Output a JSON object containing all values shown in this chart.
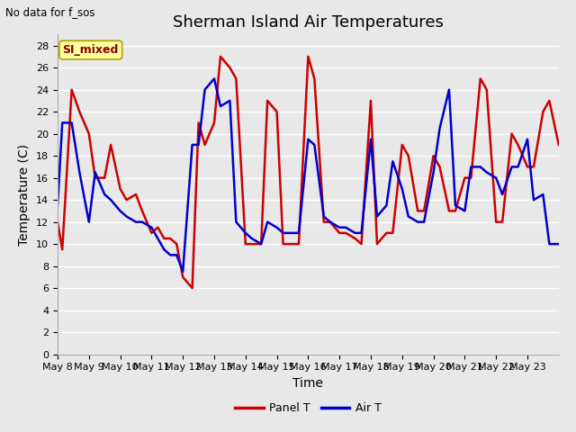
{
  "title": "Sherman Island Air Temperatures",
  "xlabel": "Time",
  "ylabel": "Temperature (C)",
  "annotation_text": "No data for f_sos",
  "legend_box_text": "SI_mixed",
  "legend_entries": [
    "Panel T",
    "Air T"
  ],
  "legend_colors": [
    "#cc0000",
    "#0000cc"
  ],
  "ylim": [
    0,
    29
  ],
  "yticks": [
    0,
    2,
    4,
    6,
    8,
    10,
    12,
    14,
    16,
    18,
    20,
    22,
    24,
    26,
    28
  ],
  "x_labels": [
    "May 8",
    "May 9",
    "May 10",
    "May 11",
    "May 12",
    "May 13",
    "May 14",
    "May 15",
    "May 16",
    "May 17",
    "May 18",
    "May 19",
    "May 20",
    "May 21",
    "May 22",
    "May 23"
  ],
  "background_color": "#e8e8e8",
  "plot_bg_color": "#e8e8e8",
  "grid_color": "#ffffff",
  "panel_T_x": [
    0.0,
    0.15,
    0.45,
    0.7,
    1.0,
    1.2,
    1.5,
    1.7,
    2.0,
    2.2,
    2.5,
    2.7,
    3.0,
    3.2,
    3.4,
    3.6,
    3.8,
    4.0,
    4.3,
    4.5,
    4.7,
    5.0,
    5.2,
    5.5,
    5.7,
    6.0,
    6.2,
    6.5,
    6.7,
    7.0,
    7.2,
    7.5,
    7.7,
    8.0,
    8.2,
    8.5,
    8.7,
    9.0,
    9.2,
    9.5,
    9.7,
    10.0,
    10.2,
    10.5,
    10.7,
    11.0,
    11.2,
    11.5,
    11.7,
    12.0,
    12.2,
    12.5,
    12.7,
    13.0,
    13.2,
    13.5,
    13.7,
    14.0,
    14.2,
    14.5,
    14.7,
    15.0,
    15.2,
    15.5,
    15.7,
    16.0
  ],
  "panel_T_y": [
    12,
    9.5,
    24,
    22,
    20,
    16,
    16,
    19,
    15,
    14,
    14.5,
    13,
    11,
    11.5,
    10.5,
    10.5,
    10,
    7,
    6,
    21,
    19,
    21,
    27,
    26,
    25,
    10,
    10,
    10,
    23,
    22,
    10,
    10,
    10,
    27,
    25,
    12,
    12,
    11,
    11,
    10.5,
    10,
    23,
    10,
    11,
    11,
    19,
    18,
    13,
    13,
    18,
    17,
    13,
    13,
    16,
    16,
    25,
    24,
    12,
    12,
    20,
    19,
    17,
    17,
    22,
    23,
    19
  ],
  "air_T_x": [
    0.0,
    0.15,
    0.45,
    0.7,
    1.0,
    1.2,
    1.5,
    1.7,
    2.0,
    2.2,
    2.5,
    2.7,
    3.0,
    3.2,
    3.4,
    3.6,
    3.8,
    4.0,
    4.3,
    4.5,
    4.7,
    5.0,
    5.2,
    5.5,
    5.7,
    6.0,
    6.2,
    6.5,
    6.7,
    7.0,
    7.2,
    7.5,
    7.7,
    8.0,
    8.2,
    8.5,
    8.7,
    9.0,
    9.2,
    9.5,
    9.7,
    10.0,
    10.2,
    10.5,
    10.7,
    11.0,
    11.2,
    11.5,
    11.7,
    12.0,
    12.2,
    12.5,
    12.7,
    13.0,
    13.2,
    13.5,
    13.7,
    14.0,
    14.2,
    14.5,
    14.7,
    15.0,
    15.2,
    15.5,
    15.7,
    16.0
  ],
  "air_T_y": [
    13.5,
    21,
    21,
    16.5,
    12,
    16.5,
    14.5,
    14,
    13,
    12.5,
    12,
    12,
    11.5,
    10.5,
    9.5,
    9,
    9,
    7.5,
    19,
    19,
    24,
    25,
    22.5,
    23,
    12,
    11,
    10.5,
    10,
    12,
    11.5,
    11,
    11,
    11,
    19.5,
    19,
    12.5,
    12,
    11.5,
    11.5,
    11,
    11,
    19.5,
    12.5,
    13.5,
    17.5,
    15,
    12.5,
    12,
    12,
    16.5,
    20.5,
    24,
    13.5,
    13,
    17,
    17,
    16.5,
    16,
    14.5,
    17,
    17,
    19.5,
    14,
    14.5,
    10,
    10
  ],
  "title_fontsize": 13,
  "label_fontsize": 10,
  "tick_fontsize": 8,
  "line_width": 1.8
}
